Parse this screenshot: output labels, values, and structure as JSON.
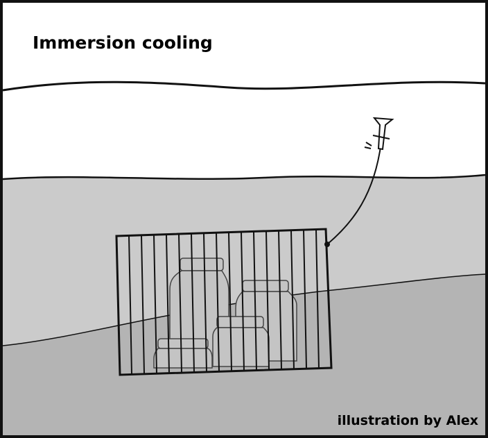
{
  "header": {
    "title": "Immersion cooling"
  },
  "credit": "illustration by Alex"
}
